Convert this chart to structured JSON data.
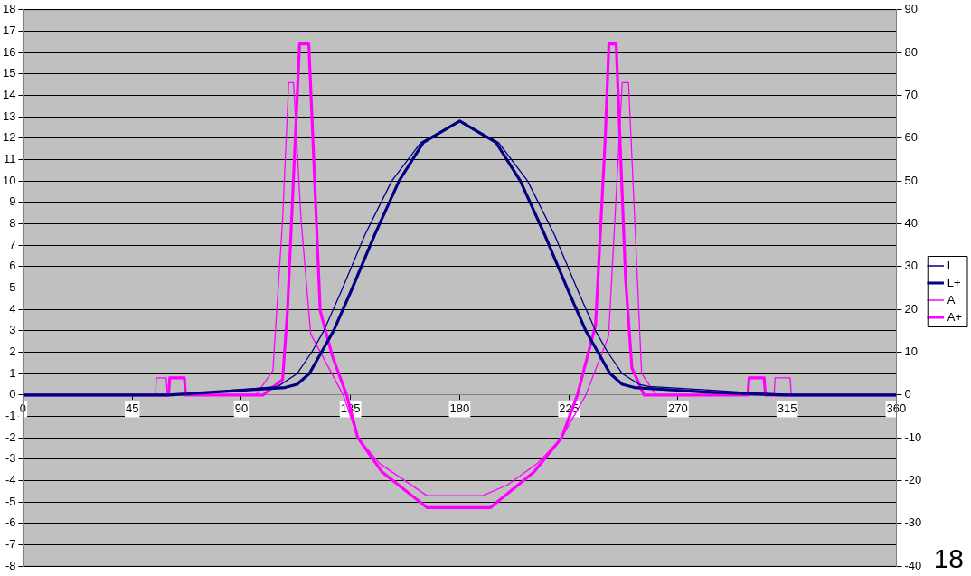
{
  "chart_data": {
    "type": "line",
    "xlim": [
      0,
      360
    ],
    "xticks": [
      0,
      45,
      90,
      135,
      180,
      225,
      270,
      315,
      360
    ],
    "ylim": [
      -8,
      18
    ],
    "yticks": [
      -8,
      -7,
      -6,
      -5,
      -4,
      -3,
      -2,
      -1,
      0,
      1,
      2,
      3,
      4,
      5,
      6,
      7,
      8,
      9,
      10,
      11,
      12,
      13,
      14,
      15,
      16,
      17,
      18
    ],
    "y2lim": [
      -40,
      90
    ],
    "y2ticks": [
      -40,
      -30,
      -20,
      -10,
      0,
      10,
      20,
      30,
      40,
      50,
      60,
      70,
      80,
      90
    ],
    "grid": "y",
    "legend": "right",
    "marker": "none",
    "line_style": "solid",
    "annotations": [
      "18"
    ],
    "series": [
      {
        "name": "L",
        "color": "#000080",
        "x": [
          0,
          55,
          60,
          80,
          105,
          113,
          119,
          124,
          131,
          141,
          152,
          164,
          180,
          196,
          208,
          219,
          229,
          236,
          241,
          247,
          254,
          258,
          280,
          300,
          320,
          360
        ],
        "values": [
          0,
          0,
          0,
          0.15,
          0.4,
          1,
          2,
          3,
          4.8,
          7.5,
          10,
          11.8,
          12.8,
          11.8,
          10,
          7.5,
          4.8,
          3,
          2,
          1,
          0.5,
          0.4,
          0.25,
          0.1,
          0,
          0
        ],
        "type": "line"
      },
      {
        "name": "L+",
        "color": "#000080",
        "x": [
          0,
          60,
          80,
          108,
          113,
          118,
          123,
          128,
          135,
          145,
          155,
          165,
          180,
          195,
          205,
          215,
          225,
          232,
          237,
          242,
          247,
          252,
          280,
          300,
          315,
          360
        ],
        "values": [
          0,
          0,
          0.15,
          0.35,
          0.5,
          1,
          2,
          3,
          4.8,
          7.5,
          10,
          11.8,
          12.8,
          11.8,
          10,
          7.5,
          4.8,
          3,
          2,
          1,
          0.5,
          0.35,
          0.15,
          0.05,
          0,
          0
        ]
      },
      {
        "name": "A",
        "color": "#ff00ff",
        "axis": "y2",
        "x": [
          0,
          54.6,
          55,
          59,
          59.5,
          96,
          103,
          107,
          109.5,
          111.5,
          114.6,
          118.6,
          132,
          138,
          147,
          166.5,
          189.5,
          199.7,
          212,
          222,
          232,
          241.4,
          247,
          249.6,
          255,
          261,
          309.6,
          310,
          316.2,
          316.7,
          360
        ],
        "values": [
          0,
          0,
          4,
          4,
          0,
          0,
          5.7,
          41,
          73,
          73,
          41,
          14.2,
          0,
          -10,
          -16,
          -23.5,
          -23.5,
          -21,
          -16,
          -10,
          0,
          13.8,
          73,
          73,
          5,
          0,
          0,
          4,
          4,
          0,
          0
        ]
      },
      {
        "name": "A+",
        "color": "#ff00ff",
        "axis": "y2",
        "x": [
          0,
          60,
          60.5,
          66.5,
          67,
          99,
          107,
          109,
          114,
          117.8,
          122.5,
          127.5,
          133.4,
          138,
          148,
          166.5,
          192.7,
          210.6,
          222,
          228.5,
          236,
          240,
          241.5,
          244.5,
          248.4,
          251,
          256,
          298.8,
          299.3,
          305.5,
          306,
          360
        ],
        "values": [
          0,
          0,
          4,
          4,
          0,
          0,
          3.6,
          19.7,
          82,
          82,
          19.7,
          9.1,
          0,
          -10,
          -18,
          -26.3,
          -26.3,
          -18,
          -10,
          0,
          16.3,
          60,
          82,
          82,
          27,
          6.3,
          0,
          0,
          4,
          4,
          0,
          0
        ]
      }
    ]
  }
}
